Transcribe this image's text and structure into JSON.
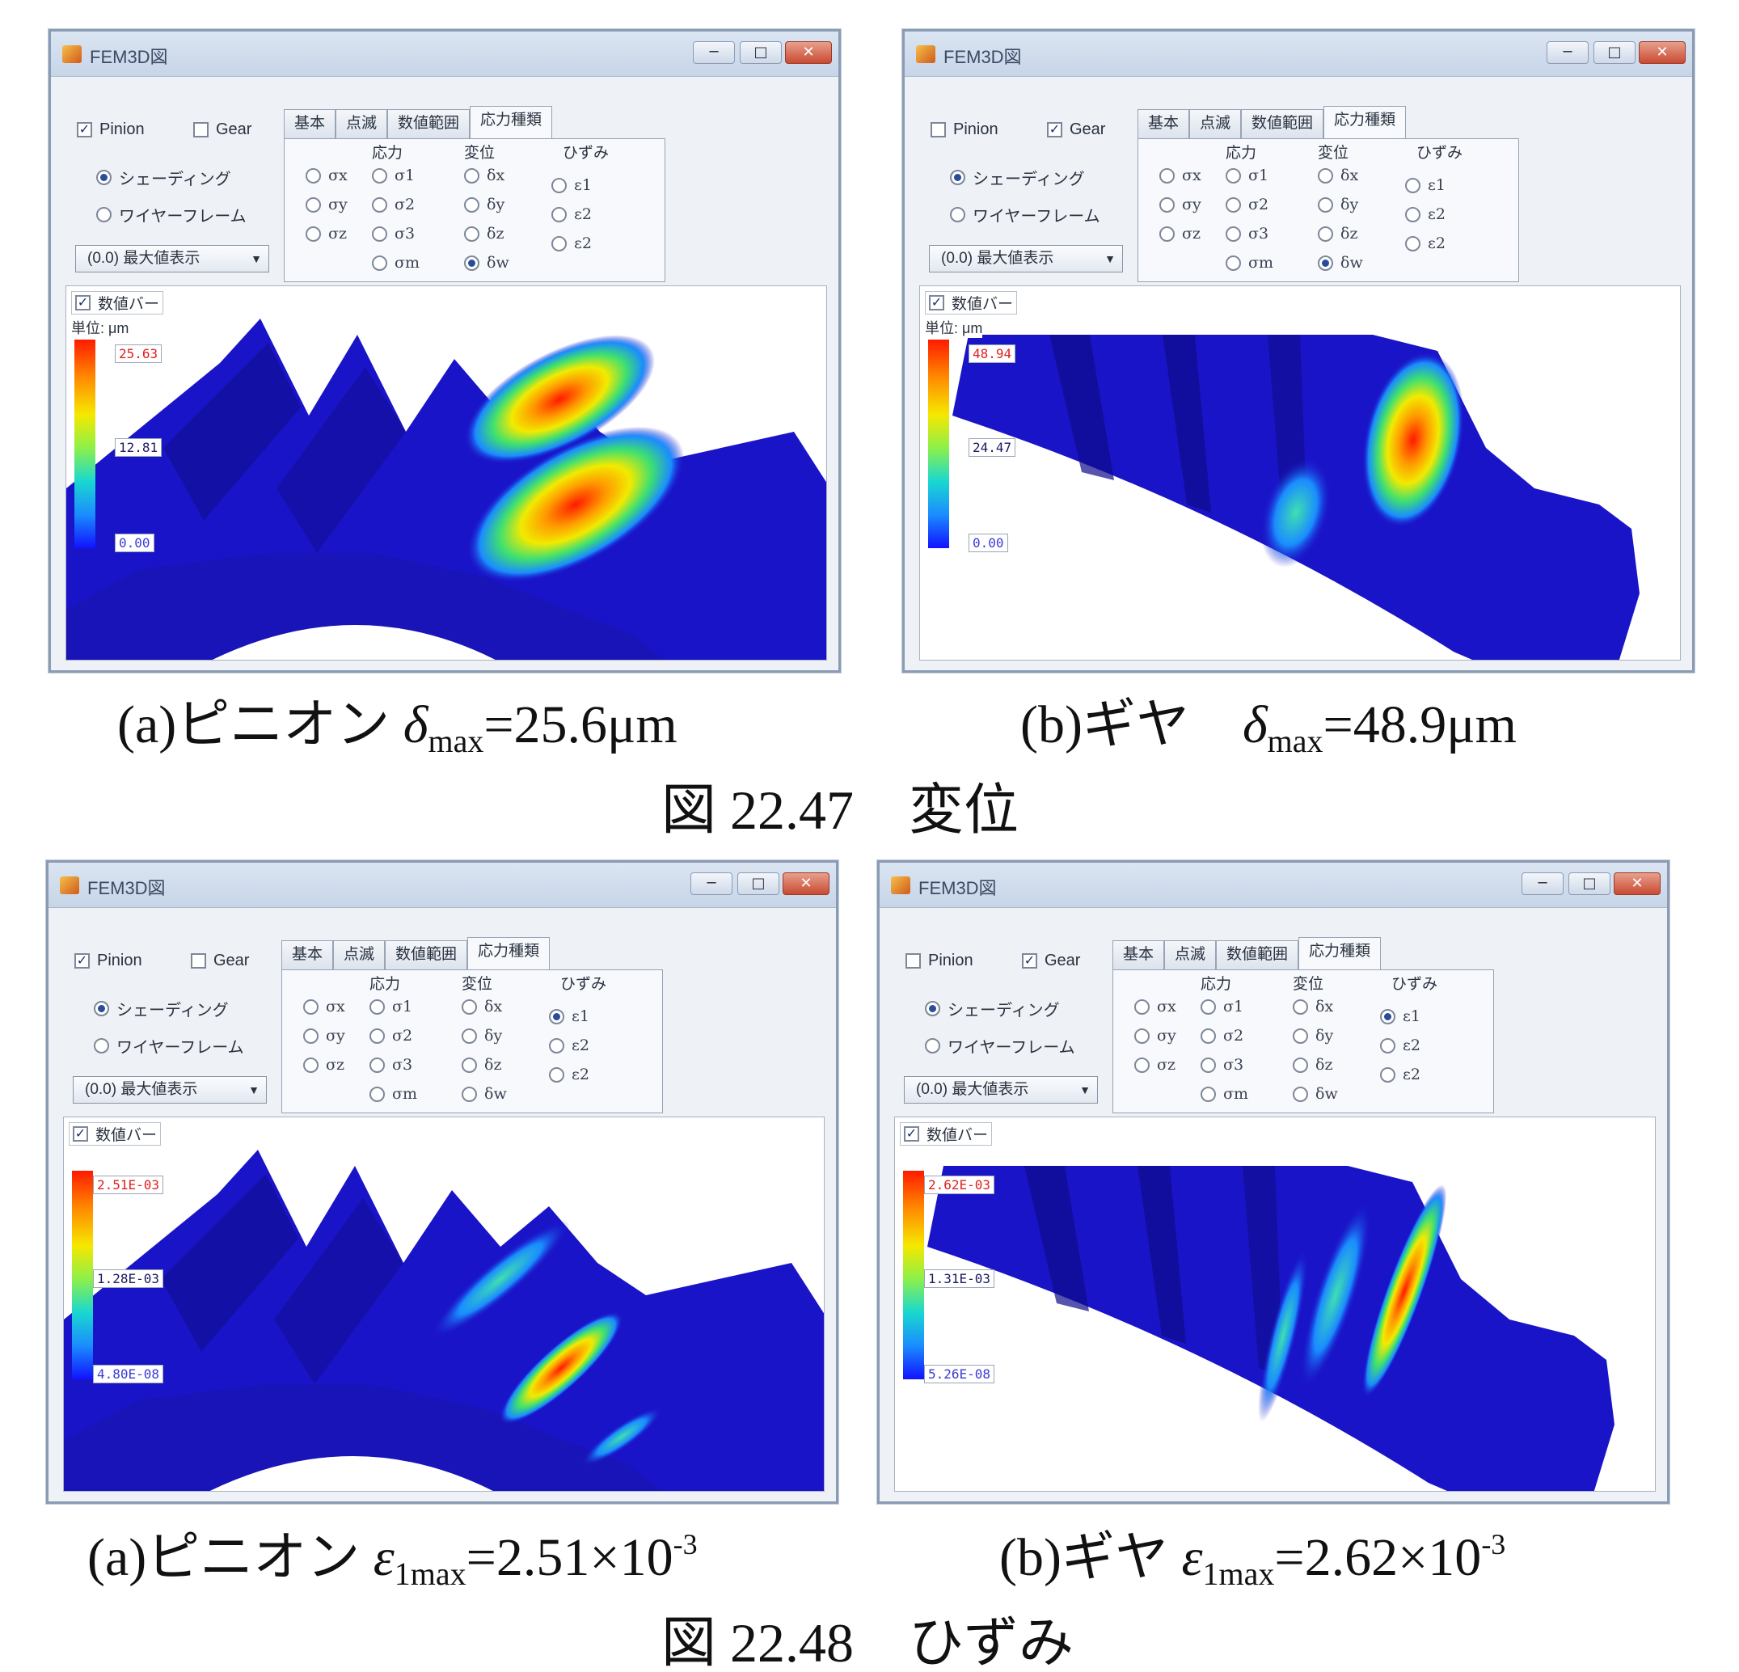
{
  "panel_labels": {
    "pinion": "Pinion",
    "gear": "Gear",
    "shading": "シェーディング",
    "wireframe": "ワイヤーフレーム",
    "dropdown": "(0.0) 最大値表示",
    "tabs": [
      "基本",
      "点滅",
      "数値範囲",
      "応力種類"
    ],
    "col_stress": "応力",
    "col_disp": "変位",
    "col_strain": "ひずみ",
    "stress_opts": [
      "σx",
      "σy",
      "σz"
    ],
    "principal_opts": [
      "σ1",
      "σ2",
      "σ3",
      "σm"
    ],
    "disp_opts": [
      "δx",
      "δy",
      "δz",
      "δw"
    ],
    "strain_opts": [
      "ε1",
      "ε2",
      "ε2"
    ],
    "value_bar": "数値バー",
    "unit": "単位: μm"
  },
  "windows": [
    {
      "title": "FEM3D図",
      "pinion_checked": "✓",
      "gear_checked": "",
      "selected": "δw",
      "colorbar": {
        "max": "25.63",
        "mid": "12.81",
        "min": "0.00"
      }
    },
    {
      "title": "FEM3D図",
      "pinion_checked": "",
      "gear_checked": "✓",
      "selected": "δw",
      "colorbar": {
        "max": "48.94",
        "mid": "24.47",
        "min": "0.00"
      }
    },
    {
      "title": "FEM3D図",
      "pinion_checked": "✓",
      "gear_checked": "",
      "selected": "ε1",
      "colorbar": {
        "max": "2.51E-03",
        "mid": "1.28E-03",
        "min": "4.80E-08"
      }
    },
    {
      "title": "FEM3D図",
      "pinion_checked": "",
      "gear_checked": "✓",
      "selected": "ε1",
      "colorbar": {
        "max": "2.62E-03",
        "mid": "1.31E-03",
        "min": "5.26E-08"
      }
    }
  ],
  "captions": {
    "a1_prefix": "(a)ピニオン ",
    "a1_sym": "δ",
    "a1_sub": "max",
    "a1_val": "=25.6μm",
    "b1_prefix": "(b)ギヤ　",
    "b1_sym": "δ",
    "b1_sub": "max",
    "b1_val": "=48.9μm",
    "fig1": "図 22.47　変位",
    "a2_prefix": "(a)ピニオン ",
    "a2_sym": "ε",
    "a2_sub": "1max",
    "a2_val": "=2.51×10",
    "a2_exp": "-3",
    "b2_prefix": "(b)ギヤ ",
    "b2_sym": "ε",
    "b2_sub": "1max",
    "b2_val": "=2.62×10",
    "b2_exp": "-3",
    "fig2": "図 22.48　ひずみ"
  },
  "colors": {
    "mesh_blue": "#1a14c8",
    "mesh_dark": "#0f0c8a",
    "hot": "#ff2a00"
  }
}
